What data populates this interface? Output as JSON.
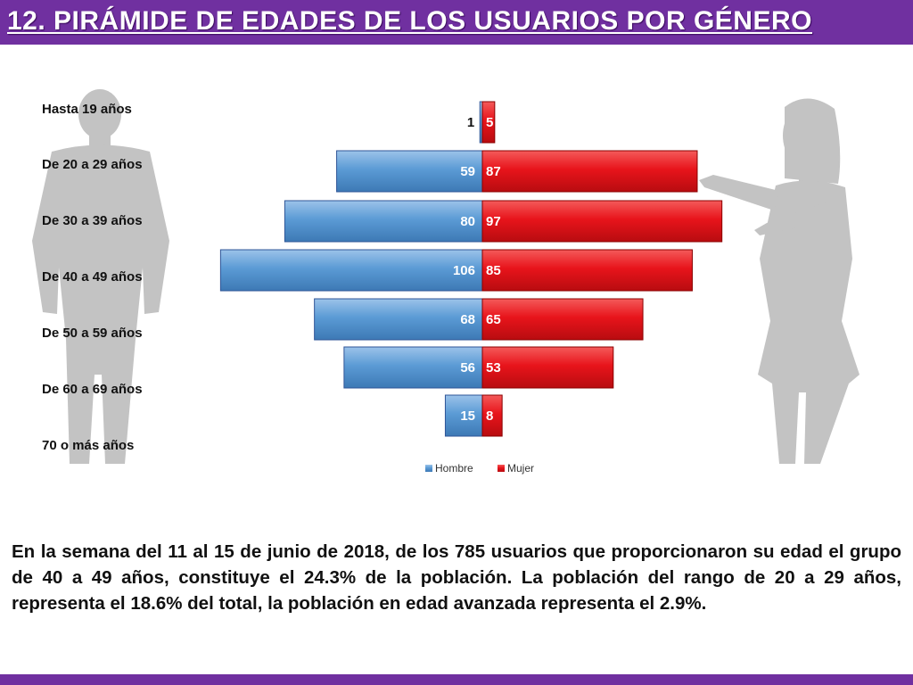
{
  "title": "12. Pirámide de Edades de los Usuarios por género",
  "colors": {
    "brand": "#7030a0",
    "hombre": "#5b9bd5",
    "mujer": "#e8141b",
    "silhouette": "#bdbdbd"
  },
  "chart_data": {
    "type": "bar",
    "orientation": "horizontal-population-pyramid",
    "title": "",
    "categories": [
      "Hasta 19 años",
      "De 20 a 29 años",
      "De 30 a 39 años",
      "De 40 a 49 años",
      "De 50 a 59 años",
      "De 60 a 69 años",
      "70 o más años"
    ],
    "series": [
      {
        "name": "Hombre",
        "values": [
          1,
          59,
          80,
          106,
          68,
          56,
          15
        ],
        "labels": [
          "1",
          "59",
          "80",
          "106",
          "68",
          "56",
          "15"
        ]
      },
      {
        "name": "Mujer",
        "values": [
          5,
          87,
          97,
          85,
          65,
          53,
          8
        ],
        "labels": [
          "5",
          "87",
          "97",
          "85",
          "65",
          "53",
          "8"
        ]
      }
    ],
    "legend": {
      "position": "bottom",
      "entries": [
        "Hombre",
        "Mujer"
      ]
    }
  },
  "summary": "En la semana del 11 al 15 de junio de 2018, de los 785 usuarios  que proporcionaron su edad el grupo de 40 a 49 años, constituye el 24.3% de la población. La población del rango de 20 a 29 años, representa el 18.6% del total, la población en edad avanzada representa el 2.9%."
}
